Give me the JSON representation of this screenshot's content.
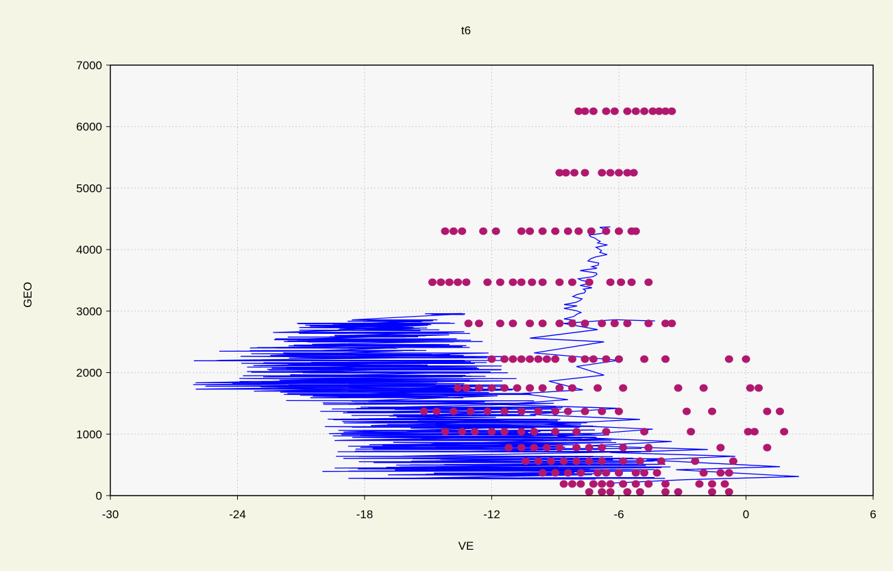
{
  "chart_data": {
    "type": "scatter",
    "title": "t6",
    "xlabel": "VE",
    "ylabel": "GEO",
    "xlim": [
      -30,
      6
    ],
    "ylim": [
      0,
      7000
    ],
    "xticks": [
      -30,
      -24,
      -18,
      -12,
      -6,
      0,
      6
    ],
    "yticks": [
      0,
      1000,
      2000,
      3000,
      4000,
      5000,
      6000,
      7000
    ],
    "grid": true,
    "colors": {
      "line": "#0000ff",
      "points": "#b0186f",
      "plot_bg": "#f7f7f7",
      "page_bg": "#f5f5e6",
      "grid": "#c8c8c8"
    },
    "series": [
      {
        "kind": "line",
        "points": [
          [
            -4.3,
            2840
          ],
          [
            -6.2,
            2860
          ],
          [
            -8.6,
            2800
          ],
          [
            -7.0,
            2700
          ],
          [
            -10.2,
            2560
          ],
          [
            -6.7,
            2500
          ],
          [
            -10.0,
            2320
          ],
          [
            -6.0,
            2200
          ],
          [
            -8.0,
            2100
          ],
          [
            -6.7,
            1960
          ],
          [
            -9.3,
            1860
          ],
          [
            -7.7,
            1720
          ],
          [
            -10.6,
            1660
          ],
          [
            -8.4,
            1560
          ],
          [
            -11.6,
            1480
          ],
          [
            -6.0,
            1420
          ],
          [
            -10.2,
            1320
          ],
          [
            -5.0,
            1240
          ],
          [
            -9.6,
            1160
          ],
          [
            -4.4,
            1080
          ],
          [
            -8.9,
            960
          ],
          [
            -3.5,
            880
          ],
          [
            -7.4,
            810
          ],
          [
            -1.8,
            750
          ],
          [
            -6.4,
            700
          ],
          [
            -0.5,
            640
          ],
          [
            -4.7,
            580
          ],
          [
            1.6,
            470
          ],
          [
            -3.3,
            420
          ],
          [
            2.5,
            310
          ],
          [
            -2.8,
            260
          ],
          [
            -6.6,
            200
          ]
        ],
        "cloud": {
          "rows": [
            [
              2950,
              -15.2,
              -13.2
            ],
            [
              2850,
              -18.9,
              -13.5
            ],
            [
              2800,
              -22.2,
              -13.5
            ],
            [
              2750,
              -21.7,
              -13.8
            ],
            [
              2700,
              -21.8,
              -13.1
            ],
            [
              2650,
              -22.4,
              -13.0
            ],
            [
              2600,
              -22.1,
              -13.3
            ],
            [
              2550,
              -22.4,
              -12.7
            ],
            [
              2500,
              -22.1,
              -12.4
            ],
            [
              2450,
              -22.6,
              -13.1
            ],
            [
              2400,
              -25.3,
              -12.5
            ],
            [
              2350,
              -25.2,
              -12.2
            ],
            [
              2300,
              -24.0,
              -12.0
            ],
            [
              2250,
              -24.7,
              -11.1
            ],
            [
              2200,
              -26.2,
              -11.2
            ],
            [
              2150,
              -25.2,
              -11.1
            ],
            [
              2100,
              -25.3,
              -11.1
            ],
            [
              2050,
              -25.5,
              -10.9
            ],
            [
              2000,
              -25.3,
              -10.8
            ],
            [
              1950,
              -24.5,
              -10.6
            ],
            [
              1900,
              -24.4,
              -10.4
            ],
            [
              1850,
              -26.0,
              -9.8
            ],
            [
              1800,
              -26.9,
              -10.8
            ],
            [
              1750,
              -26.8,
              -10.3
            ],
            [
              1700,
              -24.5,
              -10.0
            ],
            [
              1650,
              -23.1,
              -10.1
            ],
            [
              1600,
              -22.2,
              -10.1
            ],
            [
              1550,
              -22.1,
              -9.6
            ],
            [
              1500,
              -20.0,
              -9.0
            ],
            [
              1450,
              -20.1,
              -8.6
            ],
            [
              1400,
              -19.6,
              -8.2
            ],
            [
              1350,
              -20.1,
              -7.7
            ],
            [
              1300,
              -19.9,
              -7.5
            ],
            [
              1250,
              -20.2,
              -7.7
            ],
            [
              1200,
              -19.7,
              -7.1
            ],
            [
              1150,
              -19.9,
              -6.9
            ],
            [
              1100,
              -19.9,
              -6.6
            ],
            [
              1050,
              -20.0,
              -6.5
            ],
            [
              1000,
              -19.7,
              -5.9
            ],
            [
              950,
              -19.9,
              -6.0
            ],
            [
              900,
              -20.0,
              -5.5
            ],
            [
              850,
              -19.5,
              -5.2
            ],
            [
              800,
              -19.7,
              -5.3
            ],
            [
              750,
              -19.8,
              -4.4
            ],
            [
              700,
              -19.4,
              -4.3
            ],
            [
              650,
              -19.6,
              -4.3
            ],
            [
              600,
              -19.8,
              -3.8
            ],
            [
              550,
              -19.5,
              -3.8
            ],
            [
              500,
              -19.6,
              -3.3
            ],
            [
              450,
              -19.8,
              -3.4
            ],
            [
              400,
              -20.1,
              -3.5
            ],
            [
              350,
              -19.8,
              -3.5
            ],
            [
              300,
              -20.1,
              -2.9
            ]
          ]
        }
      },
      {
        "kind": "points",
        "rows": [
          {
            "y": 6250,
            "x": [
              -7.9,
              -7.6,
              -7.2,
              -6.6,
              -6.2,
              -5.6,
              -5.2,
              -4.8,
              -4.4,
              -4.1,
              -3.8,
              -3.5
            ]
          },
          {
            "y": 5250,
            "x": [
              -8.8,
              -8.5,
              -8.1,
              -7.6,
              -6.8,
              -6.4,
              -6.0,
              -5.6,
              -5.3
            ]
          },
          {
            "y": 4300,
            "x": [
              -14.2,
              -13.8,
              -13.4,
              -12.4,
              -11.8,
              -10.6,
              -10.2,
              -9.6,
              -9.0,
              -8.4,
              -7.9,
              -7.3,
              -6.6,
              -6.0,
              -5.4,
              -5.2
            ]
          },
          {
            "y": 3470,
            "x": [
              -14.8,
              -14.4,
              -14.0,
              -13.6,
              -13.2,
              -12.2,
              -11.6,
              -11.0,
              -10.6,
              -10.1,
              -9.6,
              -8.8,
              -8.2,
              -7.4,
              -6.4,
              -5.9,
              -5.4,
              -4.6
            ]
          },
          {
            "y": 2800,
            "x": [
              -13.1,
              -12.6,
              -11.6,
              -11.0,
              -10.2,
              -9.6,
              -8.8,
              -8.2,
              -7.6,
              -6.8,
              -6.2,
              -5.6,
              -4.6,
              -3.8,
              -3.5
            ]
          },
          {
            "y": 2220,
            "x": [
              -12.0,
              -11.4,
              -11.0,
              -10.6,
              -10.2,
              -9.8,
              -9.4,
              -9.0,
              -8.2,
              -7.6,
              -7.2,
              -6.6,
              -6.0,
              -4.8,
              -3.8,
              0.0,
              -0.8
            ]
          },
          {
            "y": 1750,
            "x": [
              -13.6,
              -13.2,
              -12.6,
              -12.0,
              -11.4,
              -10.8,
              -10.2,
              -9.6,
              -8.8,
              -8.2,
              -7.0,
              -5.8,
              -3.2,
              -2.0,
              0.2,
              0.6
            ]
          },
          {
            "y": 1370,
            "x": [
              -15.2,
              -14.6,
              -13.8,
              -13.0,
              -12.2,
              -11.4,
              -10.6,
              -9.8,
              -9.0,
              -8.4,
              -7.6,
              -6.8,
              -6.0,
              -2.8,
              -1.6,
              1.0,
              1.6
            ]
          },
          {
            "y": 1040,
            "x": [
              -14.2,
              -13.4,
              -12.8,
              -12.0,
              -11.4,
              -10.6,
              -10.0,
              -9.0,
              -8.0,
              -6.6,
              -4.8,
              -2.6,
              0.1,
              0.4,
              1.8
            ]
          },
          {
            "y": 780,
            "x": [
              -11.2,
              -10.6,
              -10.0,
              -9.4,
              -8.8,
              -8.0,
              -7.4,
              -6.8,
              -5.8,
              -4.6,
              -1.2,
              1.0
            ]
          },
          {
            "y": 560,
            "x": [
              -10.4,
              -9.8,
              -9.2,
              -8.6,
              -8.0,
              -7.4,
              -6.8,
              -5.8,
              -5.0,
              -4.0,
              -2.4,
              -0.6
            ]
          },
          {
            "y": 370,
            "x": [
              -9.6,
              -9.0,
              -8.4,
              -7.8,
              -7.0,
              -6.6,
              -6.0,
              -5.2,
              -4.8,
              -4.2,
              -2.0,
              -1.2,
              -0.8
            ]
          },
          {
            "y": 190,
            "x": [
              -8.6,
              -8.2,
              -7.8,
              -7.2,
              -6.8,
              -6.4,
              -5.8,
              -5.2,
              -4.6,
              -3.8,
              -2.2,
              -1.6,
              -1.0
            ]
          },
          {
            "y": 60,
            "x": [
              -7.4,
              -6.8,
              -6.4,
              -5.6,
              -5.0,
              -3.8,
              -3.2,
              -1.6,
              -0.8
            ]
          }
        ]
      }
    ]
  }
}
